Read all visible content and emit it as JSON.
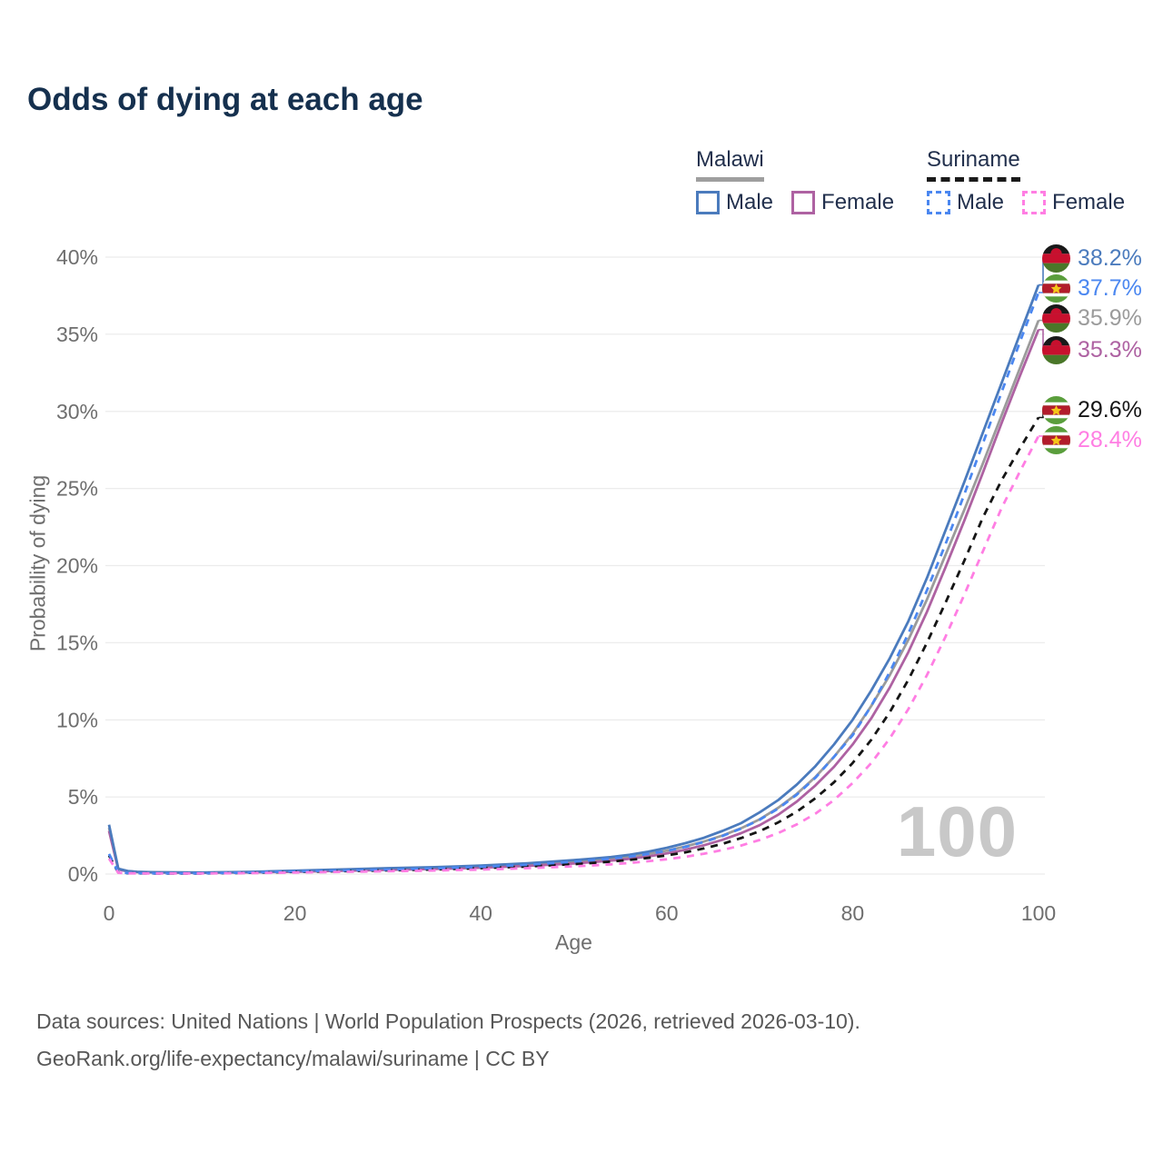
{
  "title": "Odds of dying at each age",
  "watermark": "100",
  "legend": {
    "groups": [
      {
        "name": "Malawi",
        "underline_style": "solid",
        "underline_color": "#9e9e9e",
        "items": [
          {
            "label": "Male",
            "color": "#4b7bbd",
            "dashed": false
          },
          {
            "label": "Female",
            "color": "#ae62a2",
            "dashed": false
          }
        ]
      },
      {
        "name": "Suriname",
        "underline_style": "dashed",
        "underline_color": "#1a1a1a",
        "items": [
          {
            "label": "Male",
            "color": "#4b87f0",
            "dashed": true
          },
          {
            "label": "Female",
            "color": "#ff7ee3",
            "dashed": true
          }
        ]
      }
    ]
  },
  "source": {
    "line1": "Data sources: United Nations | World Population Prospects (2026, retrieved 2026-03-10).",
    "line2": "GeoRank.org/life-expectancy/malawi/suriname | CC BY"
  },
  "chart_data": {
    "type": "line",
    "title": "Odds of dying at each age",
    "xlabel": "Age",
    "ylabel": "Probability of dying",
    "xlim": [
      0,
      100
    ],
    "ylim": [
      0,
      40
    ],
    "x_ticks": [
      0,
      20,
      40,
      60,
      80,
      100
    ],
    "y_ticks": [
      0,
      5,
      10,
      15,
      20,
      25,
      30,
      35,
      40
    ],
    "y_tick_suffix": "%",
    "grid": true,
    "x": [
      0,
      1,
      2,
      3,
      4,
      5,
      10,
      15,
      20,
      25,
      30,
      35,
      40,
      45,
      50,
      52,
      54,
      56,
      58,
      60,
      62,
      64,
      66,
      68,
      70,
      72,
      74,
      76,
      78,
      80,
      82,
      84,
      86,
      88,
      90,
      92,
      94,
      96,
      98,
      100
    ],
    "series": [
      {
        "id": "malawi-male",
        "name": "Malawi Male",
        "country": "Malawi",
        "sex": "Male",
        "flag": "malawi",
        "color": "#4b7bbd",
        "dashed": false,
        "end_value": 38.2,
        "end_label": "38.2%",
        "values": [
          3.2,
          0.35,
          0.2,
          0.15,
          0.13,
          0.12,
          0.1,
          0.14,
          0.22,
          0.3,
          0.38,
          0.45,
          0.55,
          0.7,
          0.9,
          1.0,
          1.1,
          1.25,
          1.45,
          1.7,
          2.0,
          2.35,
          2.8,
          3.3,
          4.0,
          4.8,
          5.8,
          7.0,
          8.4,
          10.0,
          11.9,
          14.0,
          16.4,
          19.2,
          22.3,
          25.4,
          28.6,
          31.8,
          35.0,
          38.2
        ]
      },
      {
        "id": "suriname-male",
        "name": "Suriname Male",
        "country": "Suriname",
        "sex": "Male",
        "flag": "suriname",
        "color": "#4b87f0",
        "dashed": true,
        "end_value": 37.7,
        "end_label": "37.7%",
        "values": [
          1.3,
          0.1,
          0.07,
          0.06,
          0.05,
          0.05,
          0.05,
          0.1,
          0.17,
          0.23,
          0.29,
          0.37,
          0.47,
          0.6,
          0.8,
          0.9,
          1.0,
          1.13,
          1.3,
          1.5,
          1.76,
          2.08,
          2.47,
          2.95,
          3.52,
          4.25,
          5.15,
          6.25,
          7.6,
          9.0,
          10.9,
          13.1,
          15.6,
          18.4,
          21.4,
          24.6,
          27.9,
          31.2,
          34.5,
          37.7
        ]
      },
      {
        "id": "malawi-both",
        "name": "Malawi",
        "country": "Malawi",
        "sex": "Both",
        "flag": "malawi",
        "color": "#9b9b9b",
        "dashed": false,
        "end_value": 35.9,
        "end_label": "35.9%",
        "values": [
          3.0,
          0.33,
          0.19,
          0.14,
          0.12,
          0.11,
          0.09,
          0.13,
          0.19,
          0.26,
          0.33,
          0.4,
          0.49,
          0.62,
          0.8,
          0.89,
          0.99,
          1.12,
          1.3,
          1.52,
          1.79,
          2.11,
          2.5,
          2.97,
          3.55,
          4.3,
          5.2,
          6.3,
          7.6,
          9.1,
          10.9,
          12.9,
          15.2,
          17.8,
          20.7,
          23.6,
          26.6,
          29.7,
          32.8,
          35.9
        ]
      },
      {
        "id": "malawi-female",
        "name": "Malawi Female",
        "country": "Malawi",
        "sex": "Female",
        "flag": "malawi",
        "color": "#ae62a2",
        "dashed": false,
        "end_value": 35.3,
        "end_label": "35.3%",
        "values": [
          2.8,
          0.3,
          0.17,
          0.13,
          0.11,
          0.1,
          0.08,
          0.11,
          0.15,
          0.21,
          0.27,
          0.33,
          0.41,
          0.53,
          0.69,
          0.77,
          0.87,
          0.99,
          1.14,
          1.34,
          1.58,
          1.87,
          2.22,
          2.65,
          3.17,
          3.85,
          4.7,
          5.75,
          6.95,
          8.4,
          10.1,
          12.1,
          14.4,
          17.0,
          19.9,
          22.9,
          26.0,
          29.2,
          32.3,
          35.3
        ]
      },
      {
        "id": "suriname-both",
        "name": "Suriname",
        "country": "Suriname",
        "sex": "Both",
        "flag": "suriname",
        "color": "#151515",
        "dashed": true,
        "end_value": 29.6,
        "end_label": "29.6%",
        "values": [
          1.2,
          0.09,
          0.06,
          0.05,
          0.05,
          0.04,
          0.04,
          0.08,
          0.14,
          0.19,
          0.24,
          0.3,
          0.38,
          0.49,
          0.64,
          0.72,
          0.81,
          0.92,
          1.05,
          1.21,
          1.41,
          1.66,
          1.96,
          2.33,
          2.78,
          3.35,
          4.05,
          4.92,
          5.95,
          7.2,
          8.7,
          10.5,
          12.6,
          15.0,
          17.6,
          20.3,
          23.1,
          25.5,
          27.6,
          29.6
        ]
      },
      {
        "id": "suriname-female",
        "name": "Suriname Female",
        "country": "Suriname",
        "sex": "Female",
        "flag": "suriname",
        "color": "#ff7ee3",
        "dashed": true,
        "end_value": 28.4,
        "end_label": "28.4%",
        "values": [
          1.0,
          0.08,
          0.05,
          0.05,
          0.04,
          0.04,
          0.04,
          0.06,
          0.1,
          0.14,
          0.18,
          0.23,
          0.29,
          0.38,
          0.5,
          0.56,
          0.63,
          0.72,
          0.83,
          0.96,
          1.12,
          1.32,
          1.56,
          1.85,
          2.21,
          2.66,
          3.22,
          3.92,
          4.8,
          5.9,
          7.2,
          8.8,
          10.7,
          12.9,
          15.4,
          18.1,
          20.9,
          23.7,
          26.1,
          28.4
        ]
      }
    ]
  }
}
